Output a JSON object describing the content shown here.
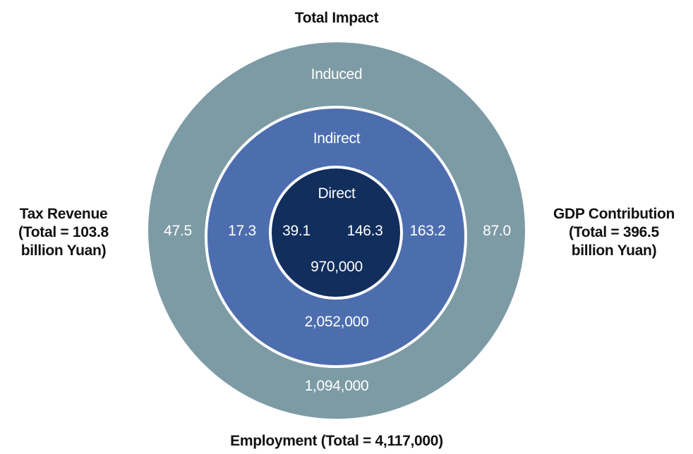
{
  "title": "Total Impact",
  "colors": {
    "induced": "#7d9ba5",
    "indirect": "#4d6eae",
    "direct": "#112e5c",
    "ring_text": "#ffffff",
    "label_text": "#111111"
  },
  "rings": {
    "induced": {
      "label": "Induced",
      "tax": "47.5",
      "gdp": "87.0",
      "employment": "1,094,000"
    },
    "indirect": {
      "label": "Indirect",
      "tax": "17.3",
      "gdp": "163.2",
      "employment": "2,052,000"
    },
    "direct": {
      "label": "Direct",
      "tax": "39.1",
      "gdp": "146.3",
      "employment": "970,000"
    }
  },
  "labels": {
    "tax": {
      "line1": "Tax Revenue",
      "line2": "(Total = 103.8",
      "line3": "billion Yuan)"
    },
    "gdp": {
      "line1": "GDP Contribution",
      "line2": "(Total = 396.5",
      "line3": "billion Yuan)"
    },
    "employment": "Employment (Total = 4,117,000)"
  }
}
